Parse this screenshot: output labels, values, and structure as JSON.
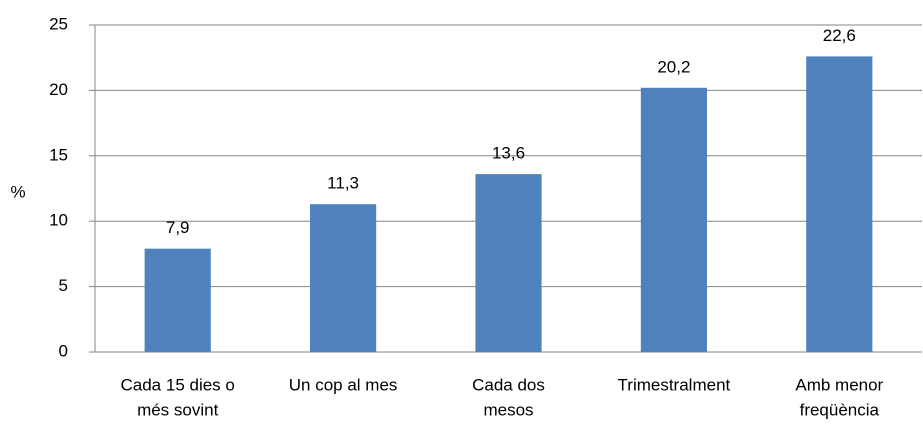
{
  "chart_data": {
    "type": "bar",
    "ylabel": "%",
    "categories": [
      [
        "Cada 15 dies o",
        "més sovint"
      ],
      [
        "Un cop al mes"
      ],
      [
        "Cada dos",
        "mesos"
      ],
      [
        "Trimestralment"
      ],
      [
        "Amb menor",
        "freqüència"
      ]
    ],
    "values": [
      7.9,
      11.3,
      13.6,
      20.2,
      22.6
    ],
    "value_labels": [
      "7,9",
      "11,3",
      "13,6",
      "20,2",
      "22,6"
    ],
    "color": "#4f81bd",
    "ylim": [
      0,
      25
    ],
    "yticks": [
      0,
      5,
      10,
      15,
      20,
      25
    ],
    "grid": true
  }
}
